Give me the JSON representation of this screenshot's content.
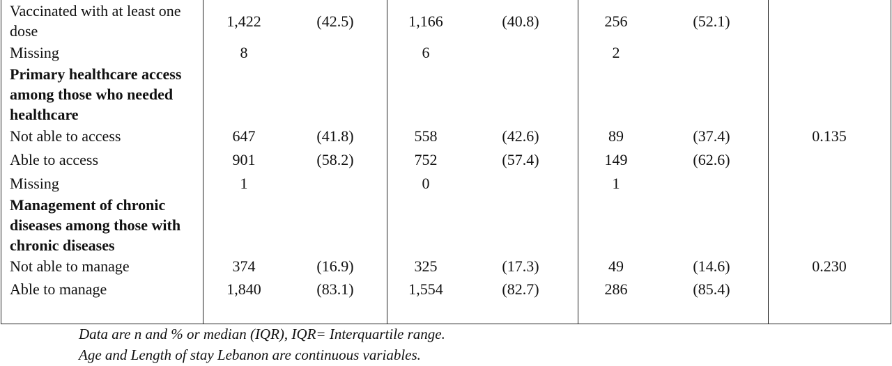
{
  "table": {
    "rows": [
      {
        "label": "Vaccinated with at least one dose",
        "n1": "1,422",
        "pct1": "(42.5)",
        "n2": "1,166",
        "pct2": "(40.8)",
        "n3": "256",
        "pct3": "(52.1)"
      },
      {
        "label": "Missing",
        "n1": "8",
        "n2": "6",
        "n3": "2"
      },
      {
        "label": "Primary healthcare access among those who needed healthcare",
        "heading": true
      },
      {
        "label": "Not able to access",
        "n1": "647",
        "pct1": "(41.8)",
        "n2": "558",
        "pct2": "(42.6)",
        "n3": "89",
        "pct3": "(37.4)",
        "p": "0.135"
      },
      {
        "label": "Able to access",
        "n1": "901",
        "pct1": "(58.2)",
        "n2": "752",
        "pct2": "(57.4)",
        "n3": "149",
        "pct3": "(62.6)"
      },
      {
        "label": "Missing",
        "n1": "1",
        "n2": "0",
        "n3": "1"
      },
      {
        "label": "Management of chronic diseases among those with chronic diseases",
        "heading": true
      },
      {
        "label": "Not able to manage",
        "n1": "374",
        "pct1": "(16.9)",
        "n2": "325",
        "pct2": "(17.3)",
        "n3": "49",
        "pct3": "(14.6)",
        "p": "0.230"
      },
      {
        "label": "Able to manage",
        "n1": "1,840",
        "pct1": "(83.1)",
        "n2": "1,554",
        "pct2": "(82.7)",
        "n3": "286",
        "pct3": "(85.4)"
      }
    ]
  },
  "notes": [
    "Data are n and % or median (IQR), IQR= Interquartile range.",
    "Age and Length of stay Lebanon are continuous variables."
  ]
}
